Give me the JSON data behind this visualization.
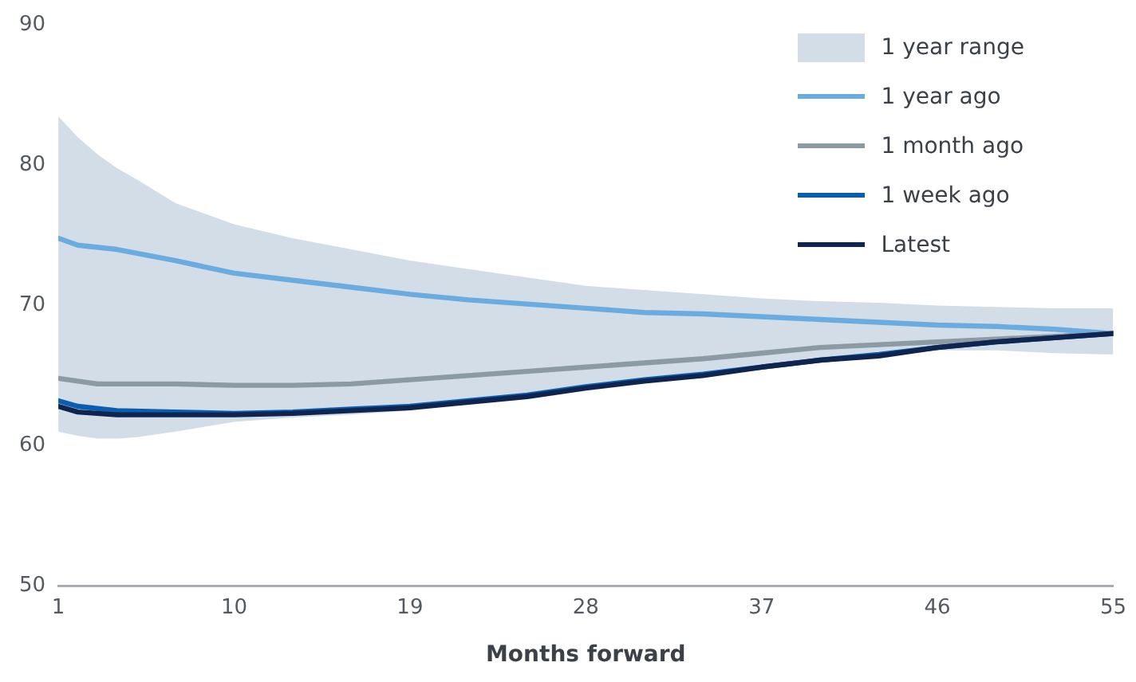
{
  "chart_data": {
    "type": "line",
    "xlabel": "Months forward",
    "xlim": [
      1,
      55
    ],
    "xticks": [
      1,
      10,
      19,
      28,
      37,
      46,
      55
    ],
    "ylim": [
      50,
      90
    ],
    "yticks": [
      50,
      60,
      70,
      80,
      90
    ],
    "grid": false,
    "legend": "top right",
    "marker": "none",
    "line_style": "solid",
    "series": [
      {
        "name": "1 year range",
        "type": "area",
        "color": "#d3dde7",
        "x": [
          1,
          2,
          3,
          4,
          5,
          7,
          10,
          13,
          16,
          19,
          22,
          25,
          28,
          31,
          34,
          37,
          40,
          43,
          46,
          49,
          52,
          55
        ],
        "values": [
          null,
          null,
          null,
          null,
          null,
          null,
          null,
          null,
          null,
          null,
          null,
          null,
          null,
          null,
          null,
          null,
          null,
          null,
          null,
          null,
          null,
          null
        ],
        "lower": [
          61,
          60.7,
          60.5,
          60.5,
          60.6,
          61,
          61.7,
          62,
          62.2,
          62.5,
          63,
          63.5,
          64,
          64.6,
          65.1,
          65.7,
          66.1,
          66.5,
          66.8,
          66.8,
          66.6,
          66.5
        ],
        "upper": [
          83.5,
          82,
          80.8,
          79.8,
          79,
          77.3,
          75.8,
          74.8,
          74,
          73.2,
          72.6,
          72,
          71.4,
          71.1,
          70.8,
          70.5,
          70.3,
          70.2,
          70,
          69.9,
          69.8,
          69.8
        ]
      },
      {
        "name": "1 year ago",
        "color": "#6aace0",
        "x": [
          1,
          2,
          4,
          7,
          10,
          13,
          16,
          19,
          22,
          25,
          28,
          31,
          34,
          37,
          40,
          43,
          46,
          49,
          52,
          55
        ],
        "values": [
          74.8,
          74.3,
          74,
          73.2,
          72.3,
          71.8,
          71.3,
          70.8,
          70.4,
          70.1,
          69.8,
          69.5,
          69.4,
          69.2,
          69,
          68.8,
          68.6,
          68.5,
          68.3,
          68
        ]
      },
      {
        "name": "1 month ago",
        "color": "#8b9aa3",
        "x": [
          1,
          3,
          7,
          10,
          13,
          16,
          19,
          22,
          25,
          28,
          31,
          34,
          37,
          40,
          43,
          46,
          49,
          52,
          55
        ],
        "values": [
          64.8,
          64.4,
          64.4,
          64.3,
          64.3,
          64.4,
          64.7,
          65,
          65.3,
          65.6,
          65.9,
          66.2,
          66.6,
          67,
          67.2,
          67.4,
          67.6,
          67.8,
          68
        ]
      },
      {
        "name": "1 week ago",
        "color": "#0a5eb0",
        "x": [
          1,
          2,
          4,
          7,
          10,
          13,
          16,
          19,
          22,
          25,
          28,
          31,
          34,
          37,
          40,
          43,
          46,
          49,
          52,
          55
        ],
        "values": [
          63.2,
          62.8,
          62.5,
          62.4,
          62.3,
          62.4,
          62.6,
          62.8,
          63.2,
          63.6,
          64.2,
          64.7,
          65.1,
          65.6,
          66.1,
          66.5,
          67,
          67.4,
          67.7,
          68
        ]
      },
      {
        "name": "Latest",
        "color": "#0f2550",
        "x": [
          1,
          2,
          4,
          7,
          10,
          13,
          16,
          19,
          22,
          25,
          28,
          31,
          34,
          37,
          40,
          43,
          46,
          49,
          52,
          55
        ],
        "values": [
          62.8,
          62.4,
          62.2,
          62.2,
          62.2,
          62.3,
          62.5,
          62.7,
          63.1,
          63.5,
          64.1,
          64.6,
          65,
          65.6,
          66.1,
          66.4,
          67,
          67.4,
          67.7,
          68
        ]
      }
    ]
  }
}
